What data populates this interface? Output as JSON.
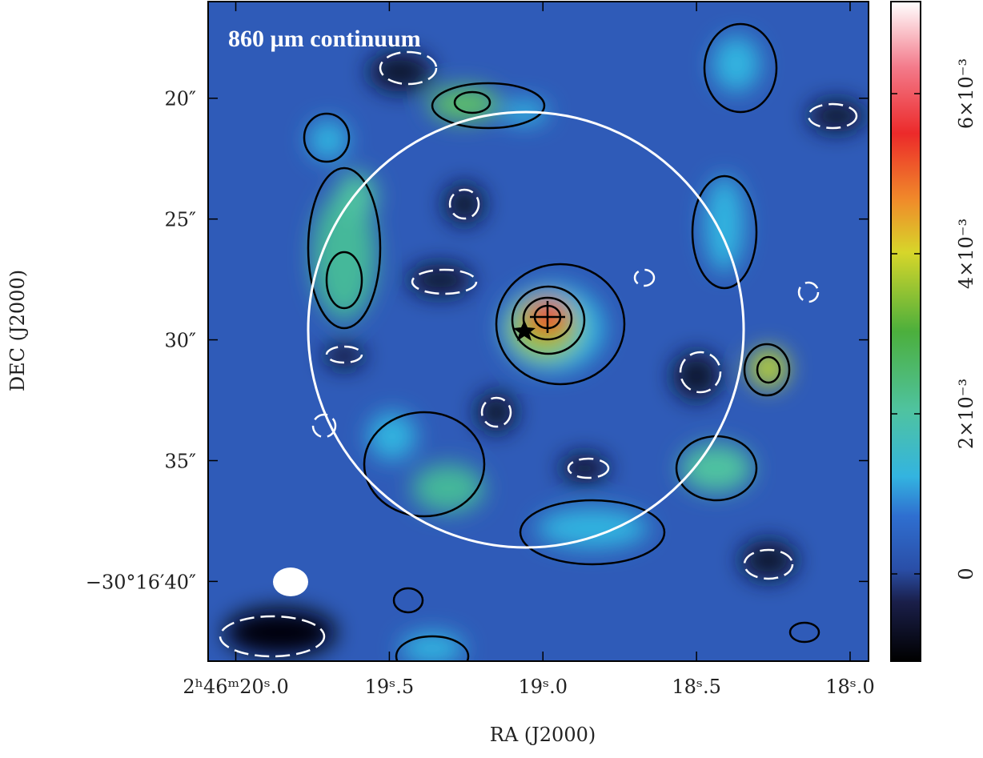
{
  "chart_data": {
    "type": "image",
    "title": "860 µm continuum",
    "x_label": "RA (J2000)",
    "y_label": "DEC (J2000)",
    "xlim": [
      20.09,
      17.94
    ],
    "xticks": [
      {
        "value": 20.0,
        "label": "2ʰ46ᵐ20ˢ.0"
      },
      {
        "value": 19.5,
        "label": "19ˢ.5"
      },
      {
        "value": 19.0,
        "label": "19ˢ.0"
      },
      {
        "value": 18.5,
        "label": "18ˢ.5"
      },
      {
        "value": 18.0,
        "label": "18ˢ.0"
      }
    ],
    "ylim": [
      16.0,
      43.3
    ],
    "yticks": [
      {
        "value": 20,
        "label": "20″"
      },
      {
        "value": 25,
        "label": "25″"
      },
      {
        "value": 30,
        "label": "30″"
      },
      {
        "value": 35,
        "label": "35″"
      },
      {
        "value": 40,
        "label": "−30°16′40″"
      }
    ],
    "clim": [
      -0.00109,
      0.00715
    ],
    "cticks": [
      0,
      {
        "value": 0.002,
        "label": "2×10⁻³"
      },
      {
        "value": 0.004,
        "label": "4×10⁻³"
      },
      {
        "value": 0.006,
        "label": "6×10⁻³"
      }
    ]
  }
}
